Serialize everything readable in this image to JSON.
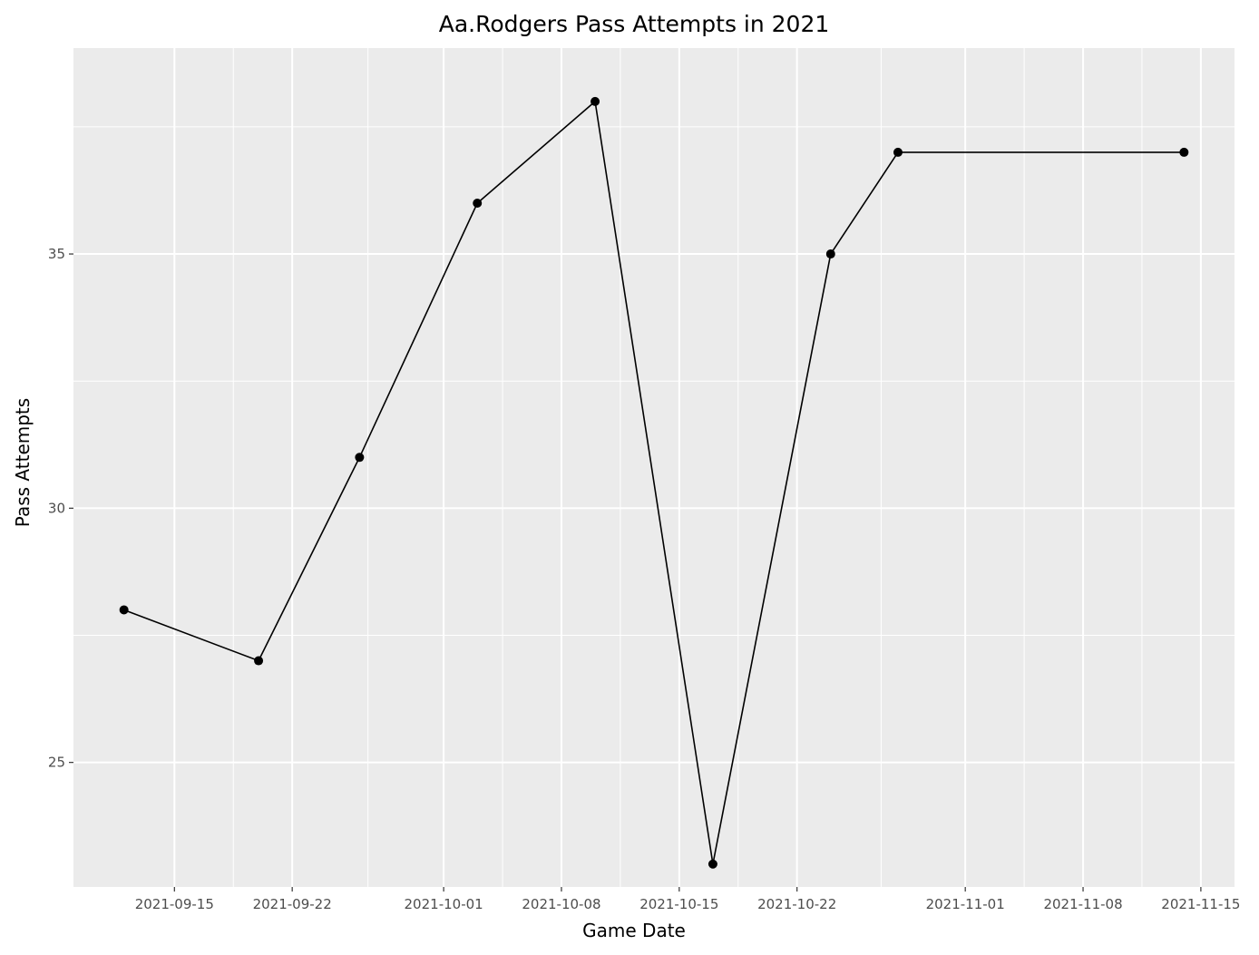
{
  "chart_data": {
    "type": "line",
    "title": "Aa.Rodgers Pass Attempts in 2021",
    "xlabel": "Game Date",
    "ylabel": "Pass Attempts",
    "x_type": "date",
    "xlim": [
      "2021-09-09",
      "2021-11-17"
    ],
    "ylim": [
      22.55,
      39.05
    ],
    "x_ticks": [
      "2021-09-15",
      "2021-09-22",
      "2021-10-01",
      "2021-10-08",
      "2021-10-15",
      "2021-10-22",
      "2021-11-01",
      "2021-11-08",
      "2021-11-15"
    ],
    "y_ticks": [
      25,
      30,
      35
    ],
    "grid": true,
    "background": "#EBEBEB",
    "line_color": "#000000",
    "point_color": "#000000",
    "series": [
      {
        "x": [
          "2021-09-12",
          "2021-09-20",
          "2021-09-26",
          "2021-10-03",
          "2021-10-10",
          "2021-10-17",
          "2021-10-24",
          "2021-10-28",
          "2021-11-14"
        ],
        "y": [
          28,
          27,
          31,
          36,
          38,
          23,
          35,
          37,
          37
        ]
      }
    ]
  }
}
